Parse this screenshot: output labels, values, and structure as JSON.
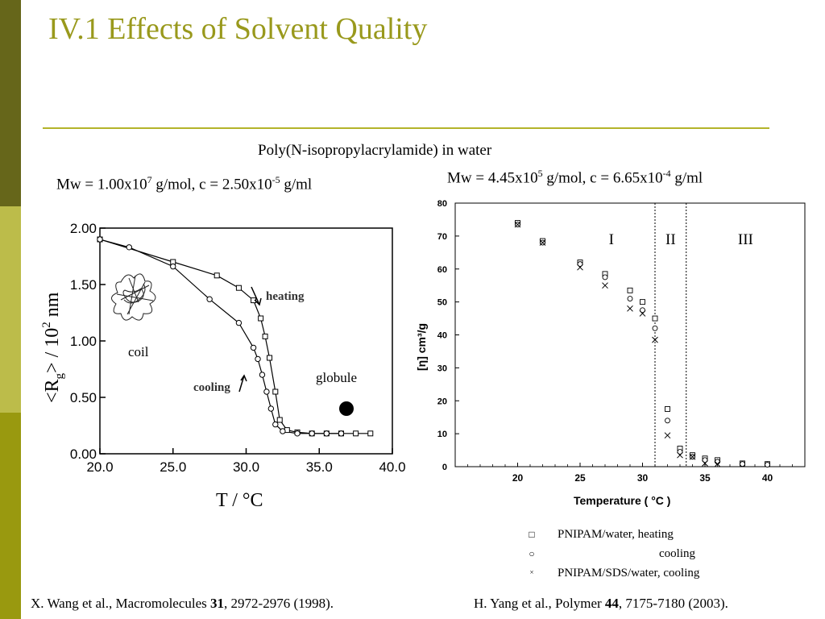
{
  "slide": {
    "title": "IV.1 Effects of Solvent Quality",
    "subtitle": "Poly(N-isopropylacrylamide) in water",
    "mw_left": {
      "prefix": "Mw = 1.00x10",
      "exp1": "7",
      "mid": " g/mol, c = 2.50x10",
      "exp2": "-5",
      "suffix": " g/ml"
    },
    "mw_right": {
      "prefix": "Mw = 4.45x10",
      "exp1": "5",
      "mid": " g/mol, c = 6.65x10",
      "exp2": "-4",
      "suffix": " g/ml"
    },
    "citation_left": {
      "authors": "X. Wang et al., Macromolecules ",
      "volume": "31",
      "pages": ", 2972-2976 (1998)."
    },
    "citation_right": {
      "authors": "H. Yang et al., Polymer ",
      "volume": "44",
      "pages": ", 7175-7180 (2003)."
    },
    "colors": {
      "sidebar_top": "#66661a",
      "sidebar_mid": "#bcbc4a",
      "sidebar_bottom": "#99990f",
      "title": "#99991c",
      "rule": "#b3b32a"
    }
  },
  "chart_data": [
    {
      "type": "line",
      "xlabel": "T / °C",
      "ylabel_main": "<R",
      "ylabel_sub": "g",
      "ylabel_tail": "> / 10",
      "ylabel_exp": "2",
      "ylabel_unit": " nm",
      "xlim": [
        20,
        40
      ],
      "ylim": [
        0,
        2
      ],
      "xticks": [
        "20.0",
        "25.0",
        "30.0",
        "35.0",
        "40.0"
      ],
      "yticks": [
        "0.00",
        "0.50",
        "1.00",
        "1.50",
        "2.00"
      ],
      "annotations": {
        "heating": "heating",
        "cooling": "cooling",
        "coil": "coil",
        "globule": "globule"
      },
      "series": [
        {
          "name": "heating",
          "marker": "square",
          "x": [
            20.0,
            25.0,
            28.0,
            29.5,
            30.5,
            31.0,
            31.3,
            31.6,
            32.0,
            32.3,
            32.8,
            33.5,
            34.5,
            35.5,
            36.5,
            37.5,
            38.5
          ],
          "y": [
            1.9,
            1.7,
            1.58,
            1.47,
            1.36,
            1.2,
            1.04,
            0.85,
            0.55,
            0.3,
            0.21,
            0.19,
            0.18,
            0.18,
            0.18,
            0.18,
            0.18
          ]
        },
        {
          "name": "cooling",
          "marker": "circle",
          "x": [
            20.0,
            22.0,
            25.0,
            27.5,
            29.5,
            30.5,
            30.8,
            31.1,
            31.4,
            31.7,
            32.0,
            32.5,
            33.5,
            34.5,
            35.5,
            36.5
          ],
          "y": [
            1.9,
            1.83,
            1.66,
            1.37,
            1.16,
            0.94,
            0.84,
            0.7,
            0.55,
            0.4,
            0.26,
            0.2,
            0.18,
            0.18,
            0.18,
            0.18
          ]
        }
      ]
    },
    {
      "type": "scatter",
      "xlabel": "Temperature ( °C )",
      "ylabel": "[η] cm³/g",
      "xlim": [
        15,
        43
      ],
      "ylim": [
        0,
        80
      ],
      "xticks": [
        20,
        25,
        30,
        35,
        40
      ],
      "yticks": [
        0,
        10,
        20,
        30,
        40,
        50,
        60,
        70,
        80
      ],
      "regions": {
        "boundaries": [
          31.0,
          33.5
        ],
        "labels": [
          "I",
          "II",
          "III"
        ]
      },
      "legend": [
        "PNIPAM/water, heating",
        "cooling",
        "PNIPAM/SDS/water, cooling"
      ],
      "series": [
        {
          "name": "PNIPAM/water, heating",
          "marker": "square",
          "x": [
            20,
            22,
            25,
            27,
            29,
            30,
            31,
            32,
            33,
            34,
            35,
            36,
            38,
            40
          ],
          "y": [
            74,
            68.5,
            62,
            58.5,
            53.5,
            50,
            45,
            17.5,
            5.5,
            3.5,
            2.5,
            2,
            1,
            0.8
          ]
        },
        {
          "name": "cooling",
          "marker": "circle",
          "x": [
            20,
            22,
            25,
            27,
            29,
            30,
            31,
            32,
            33,
            34,
            35,
            36,
            38,
            40
          ],
          "y": [
            73.5,
            68,
            61.5,
            57.5,
            51,
            47.5,
            42,
            14,
            4.5,
            3,
            2,
            1.5,
            0.8,
            0.6
          ]
        },
        {
          "name": "PNIPAM/SDS/water, cooling",
          "marker": "cross",
          "x": [
            20,
            22,
            25,
            27,
            29,
            30,
            31,
            32,
            33,
            34,
            35,
            36
          ],
          "y": [
            73.5,
            68,
            60.5,
            55,
            48,
            46.5,
            38.5,
            9.5,
            3.5,
            3,
            1,
            0.8
          ]
        }
      ]
    }
  ]
}
